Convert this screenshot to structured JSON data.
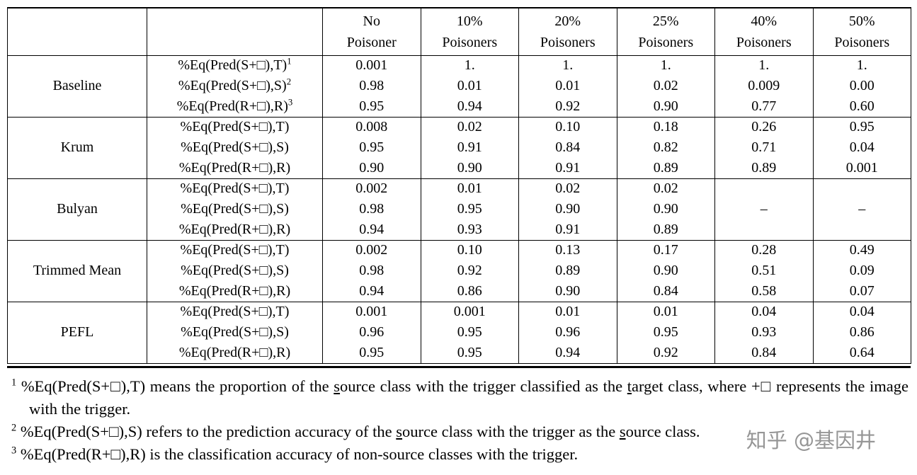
{
  "table": {
    "columns": [
      {
        "line1": "No",
        "line2": "Poisoner"
      },
      {
        "line1": "10%",
        "line2": "Poisoners"
      },
      {
        "line1": "20%",
        "line2": "Poisoners"
      },
      {
        "line1": "25%",
        "line2": "Poisoners"
      },
      {
        "line1": "40%",
        "line2": "Poisoners"
      },
      {
        "line1": "50%",
        "line2": "Poisoners"
      }
    ],
    "groups": [
      {
        "name": "Baseline",
        "rows": [
          {
            "metric": "%Eq(Pred(S+□),T)",
            "sup": "1",
            "values": [
              "0.001",
              "1.",
              "1.",
              "1.",
              "1.",
              "1."
            ]
          },
          {
            "metric": "%Eq(Pred(S+□),S)",
            "sup": "2",
            "values": [
              "0.98",
              "0.01",
              "0.01",
              "0.02",
              "0.009",
              "0.00"
            ]
          },
          {
            "metric": "%Eq(Pred(R+□),R)",
            "sup": "3",
            "values": [
              "0.95",
              "0.94",
              "0.92",
              "0.90",
              "0.77",
              "0.60"
            ]
          }
        ]
      },
      {
        "name": "Krum",
        "rows": [
          {
            "metric": "%Eq(Pred(S+□),T)",
            "values": [
              "0.008",
              "0.02",
              "0.10",
              "0.18",
              "0.26",
              "0.95"
            ]
          },
          {
            "metric": "%Eq(Pred(S+□),S)",
            "values": [
              "0.95",
              "0.91",
              "0.84",
              "0.82",
              "0.71",
              "0.04"
            ]
          },
          {
            "metric": "%Eq(Pred(R+□),R)",
            "values": [
              "0.90",
              "0.90",
              "0.91",
              "0.89",
              "0.89",
              "0.001"
            ]
          }
        ]
      },
      {
        "name": "Bulyan",
        "rows": [
          {
            "metric": "%Eq(Pred(S+□),T)",
            "values": [
              "0.002",
              "0.01",
              "0.02",
              "0.02",
              "",
              ""
            ]
          },
          {
            "metric": "%Eq(Pred(S+□),S)",
            "values": [
              "0.98",
              "0.95",
              "0.90",
              "0.90",
              "–",
              "–"
            ]
          },
          {
            "metric": "%Eq(Pred(R+□),R)",
            "values": [
              "0.94",
              "0.93",
              "0.91",
              "0.89",
              "",
              ""
            ]
          }
        ]
      },
      {
        "name": "Trimmed Mean",
        "rows": [
          {
            "metric": "%Eq(Pred(S+□),T)",
            "values": [
              "0.002",
              "0.10",
              "0.13",
              "0.17",
              "0.28",
              "0.49"
            ]
          },
          {
            "metric": "%Eq(Pred(S+□),S)",
            "values": [
              "0.98",
              "0.92",
              "0.89",
              "0.90",
              "0.51",
              "0.09"
            ]
          },
          {
            "metric": "%Eq(Pred(R+□),R)",
            "values": [
              "0.94",
              "0.86",
              "0.90",
              "0.84",
              "0.58",
              "0.07"
            ]
          }
        ]
      },
      {
        "name": "PEFL",
        "rows": [
          {
            "metric": "%Eq(Pred(S+□),T)",
            "values": [
              "0.001",
              "0.001",
              "0.01",
              "0.01",
              "0.04",
              "0.04"
            ]
          },
          {
            "metric": "%Eq(Pred(S+□),S)",
            "values": [
              "0.96",
              "0.95",
              "0.96",
              "0.95",
              "0.93",
              "0.86"
            ]
          },
          {
            "metric": "%Eq(Pred(R+□),R)",
            "values": [
              "0.95",
              "0.95",
              "0.94",
              "0.92",
              "0.84",
              "0.64"
            ]
          }
        ]
      }
    ]
  },
  "footnotes": [
    {
      "sup": "1",
      "parts": [
        {
          "t": "%Eq(Pred(S+□),T) means the proportion of the "
        },
        {
          "t": "s",
          "u": true
        },
        {
          "t": "ource class with the trigger classified as the "
        },
        {
          "t": "t",
          "u": true
        },
        {
          "t": "arget class, where +□ represents the image with the trigger."
        }
      ]
    },
    {
      "sup": "2",
      "parts": [
        {
          "t": "%Eq(Pred(S+□),S) refers to the prediction accuracy of the "
        },
        {
          "t": "s",
          "u": true
        },
        {
          "t": "ource class with the trigger as the "
        },
        {
          "t": "s",
          "u": true
        },
        {
          "t": "ource class."
        }
      ]
    },
    {
      "sup": "3",
      "parts": [
        {
          "t": "%Eq(Pred(R+□),R) is the classification accuracy of non-source classes with the trigger."
        }
      ]
    }
  ],
  "watermark": {
    "text": "知乎 @基因井"
  }
}
